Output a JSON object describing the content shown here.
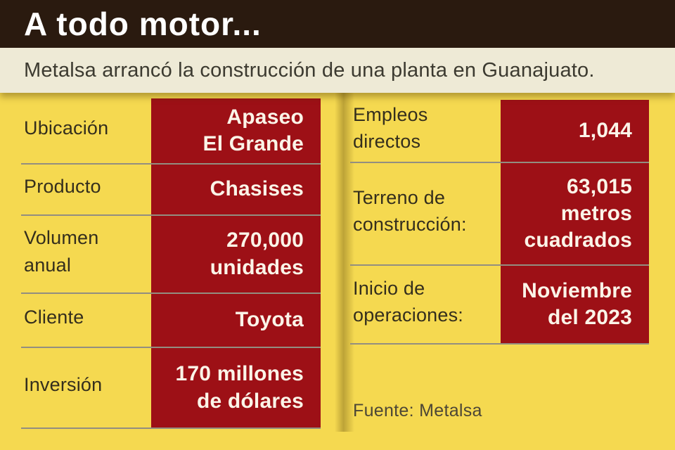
{
  "header": {
    "title": "A todo motor..."
  },
  "subtitle": {
    "text": "Metalsa arrancó la construcción de una planta en Guanajuato."
  },
  "colors": {
    "header_bg": "#2a1a0f",
    "subtitle_bg": "#eeead6",
    "body_yellow": "#f5d950",
    "value_red": "#9d1016",
    "divider_gray": "#938e80",
    "title_text": "#ffffff",
    "label_text": "#342e1d",
    "value_text": "#fbf4e8"
  },
  "left_table": {
    "rows": [
      {
        "label": "Ubicación",
        "value": "Apaseo\nEl Grande"
      },
      {
        "label": "Producto",
        "value": "Chasises"
      },
      {
        "label": "Volumen\nanual",
        "value": "270,000\nunidades"
      },
      {
        "label": "Cliente",
        "value": "Toyota"
      },
      {
        "label": "Inversión",
        "value": "170 millones\nde dólares"
      }
    ]
  },
  "right_table": {
    "rows": [
      {
        "label": "Empleos\ndirectos",
        "value": "1,044"
      },
      {
        "label": "Terreno de\nconstrucción:",
        "value": "63,015\nmetros\ncuadrados"
      },
      {
        "label": "Inicio de\noperaciones:",
        "value": "Noviembre\ndel 2023"
      }
    ]
  },
  "source": {
    "text": "Fuente: Metalsa"
  },
  "chart_data": {
    "type": "table",
    "title": "A todo motor...",
    "subtitle": "Metalsa arrancó la construcción de una planta en Guanajuato.",
    "rows": [
      [
        "Ubicación",
        "Apaseo El Grande"
      ],
      [
        "Producto",
        "Chasises"
      ],
      [
        "Volumen anual",
        "270,000 unidades"
      ],
      [
        "Cliente",
        "Toyota"
      ],
      [
        "Inversión",
        "170 millones de dólares"
      ],
      [
        "Empleos directos",
        "1,044"
      ],
      [
        "Terreno de construcción",
        "63,015 metros cuadrados"
      ],
      [
        "Inicio de operaciones",
        "Noviembre del 2023"
      ]
    ],
    "source": "Fuente: Metalsa"
  }
}
